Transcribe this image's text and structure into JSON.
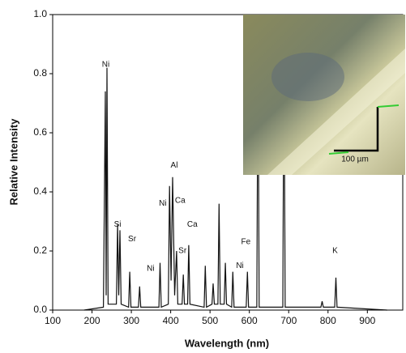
{
  "chart_data": {
    "type": "line",
    "xlabel": "Wavelength (nm)",
    "ylabel": "Relative Intensity",
    "xlim": [
      100,
      990
    ],
    "ylim": [
      0,
      1
    ],
    "xticks": [
      100,
      200,
      300,
      400,
      500,
      600,
      700,
      800,
      900
    ],
    "yticks": [
      {
        "value": 0,
        "label": "0.0"
      },
      0.2,
      0.4,
      0.6,
      0.8,
      {
        "value": 1,
        "label": "1.0"
      }
    ],
    "color": "#111111",
    "x": [
      180,
      229,
      234,
      236,
      238,
      241,
      262,
      265,
      268,
      271,
      274,
      293,
      296,
      299,
      318,
      321,
      324,
      370,
      373,
      376,
      394,
      397,
      401,
      405,
      410,
      415,
      418,
      429,
      432,
      435,
      443,
      446,
      449,
      485,
      488,
      491,
      505,
      508,
      511,
      520,
      523,
      526,
      536,
      539,
      542,
      555,
      558,
      561,
      592,
      595,
      598,
      619,
      622,
      625,
      685,
      688,
      691,
      782,
      785,
      788,
      817,
      820,
      823,
      950
    ],
    "values": [
      0,
      0.01,
      0.74,
      0.05,
      0.82,
      0.02,
      0.02,
      0.29,
      0.05,
      0.27,
      0.02,
      0.01,
      0.13,
      0.01,
      0.01,
      0.08,
      0.01,
      0.01,
      0.16,
      0.01,
      0.02,
      0.42,
      0.1,
      0.45,
      0.05,
      0.2,
      0.02,
      0.02,
      0.12,
      0.02,
      0.02,
      0.22,
      0.02,
      0.01,
      0.15,
      0.01,
      0.02,
      0.09,
      0.02,
      0.02,
      0.36,
      0.02,
      0.02,
      0.16,
      0.02,
      0.01,
      0.13,
      0.01,
      0.01,
      0.13,
      0.01,
      0.01,
      0.95,
      0.01,
      0.01,
      0.95,
      0.01,
      0.01,
      0.03,
      0.01,
      0.01,
      0.11,
      0.01,
      0
    ],
    "annotations": [
      {
        "text": "Ni",
        "x": 235,
        "y": 0.83
      },
      {
        "text": "Si",
        "x": 265,
        "y": 0.29
      },
      {
        "text": "Sr",
        "x": 302,
        "y": 0.24
      },
      {
        "text": "Ni",
        "x": 349,
        "y": 0.14
      },
      {
        "text": "Al",
        "x": 409,
        "y": 0.49
      },
      {
        "text": "Ni",
        "x": 380,
        "y": 0.36
      },
      {
        "text": "Ca",
        "x": 424,
        "y": 0.37
      },
      {
        "text": "Sr",
        "x": 430,
        "y": 0.2
      },
      {
        "text": "Ca",
        "x": 455,
        "y": 0.29
      },
      {
        "text": "Fe",
        "x": 591,
        "y": 0.23
      },
      {
        "text": "Ni",
        "x": 576,
        "y": 0.15
      },
      {
        "text": "K",
        "x": 818,
        "y": 0.2
      }
    ],
    "inset_scale_label": "100 µm"
  }
}
